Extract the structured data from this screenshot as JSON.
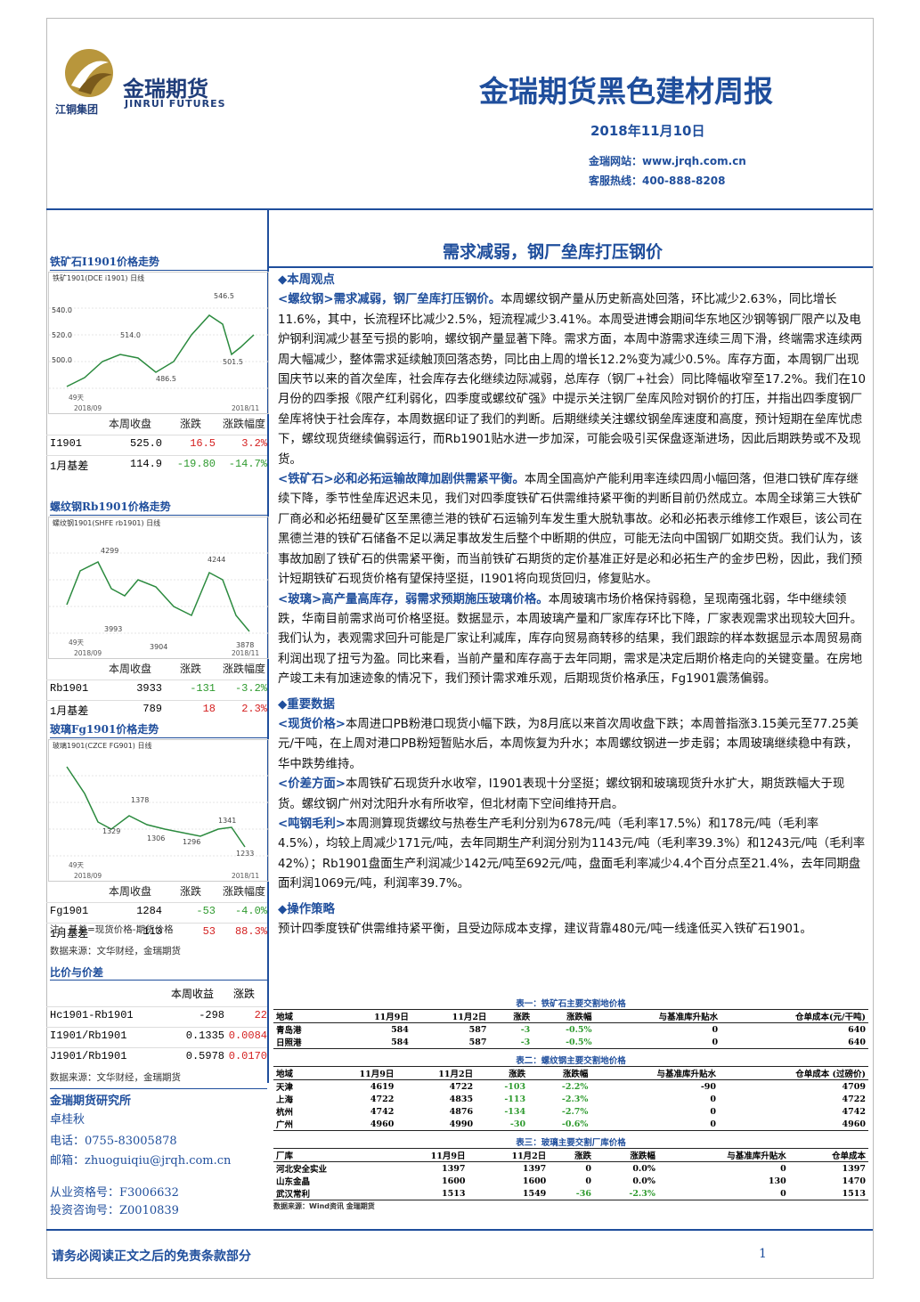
{
  "header": {
    "logo_name": "金瑞期货",
    "logo_en": "JINRUI FUTURES",
    "logo_group": "江铜集团",
    "title": "金瑞期货黑色建材周报",
    "date": "2018年11月10日",
    "website": "金瑞网站：www.jrqh.com.cn",
    "hotline": "客服热线：400-888-8208"
  },
  "sidebar": {
    "panels": [
      {
        "title": "铁矿石I1901价格走势",
        "chart_title": "铁矿1901(DCE i1901) 日线",
        "axis_labels": [
          "540.0",
          "520.0",
          "500.0"
        ],
        "annotations": [
          "546.5",
          "514.0",
          "486.5",
          "501.5"
        ],
        "bottom_labels": [
          "49天",
          "2018/09",
          "2018/11"
        ],
        "table": {
          "header": [
            "本周收盘",
            "涨跌",
            "涨跌幅度"
          ],
          "rows": [
            [
              "I1901",
              "525.0",
              "16.5",
              "3.2%"
            ],
            [
              "1月基差",
              "114.9",
              "-19.80",
              "-14.7%"
            ]
          ]
        }
      },
      {
        "title": "螺纹钢Rb1901价格走势",
        "chart_title": "螺纹钢1901(SHFE rb1901) 日线",
        "axis_labels": [],
        "annotations": [
          "4299",
          "4244",
          "3993",
          "3904",
          "3878"
        ],
        "bottom_labels": [
          "49天",
          "2018/09",
          "2018/11"
        ],
        "table": {
          "header": [
            "本周收盘",
            "涨跌",
            "涨跌幅度"
          ],
          "rows": [
            [
              "Rb1901",
              "3933",
              "-131",
              "-3.2%"
            ],
            [
              "1月基差",
              "789",
              "18",
              "2.3%"
            ]
          ]
        }
      },
      {
        "title": "玻璃Fg1901价格走势",
        "chart_title": "玻璃1901(CZCE FG901) 日线",
        "axis_labels": [],
        "annotations": [
          "1378",
          "1329",
          "1306",
          "1296",
          "1341",
          "1233"
        ],
        "bottom_labels": [
          "49天",
          "2018/09",
          "2018/11"
        ],
        "table": {
          "header": [
            "本周收盘",
            "涨跌",
            "涨跌幅度"
          ],
          "rows": [
            [
              "Fg1901",
              "1284",
              "-53",
              "-4.0%"
            ],
            [
              "1月基差",
              "113",
              "53",
              "88.3%"
            ]
          ]
        }
      }
    ],
    "note": "注：基差=现货价格-期货价格",
    "source": "数据来源：文华财经，金瑞期货",
    "ratio": {
      "title": "比价与价差",
      "header": [
        "本周收益",
        "涨跌"
      ],
      "rows": [
        [
          "Hc1901-Rb1901",
          "-298",
          "22"
        ],
        [
          "I1901/Rb1901",
          "0.1335",
          "0.0084"
        ],
        [
          "J1901/Rb1901",
          "0.5978",
          "0.0170"
        ]
      ],
      "source": "数据来源：文华财经，金瑞期货"
    },
    "contact": {
      "org": "金瑞期货研究所",
      "name": "卓桂秋",
      "phone": "电话：0755-83005878",
      "email": "邮箱：zhuoguiqiu@jrqh.com.cn",
      "license": "从业资格号：F3006632",
      "advisor": "投资咨询号：Z0010839"
    }
  },
  "main": {
    "headline": "需求减弱，钢厂垒库打压钢价",
    "sections": [
      {
        "title": "◆本周观点",
        "paragraphs": [
          {
            "lead": "<螺纹钢>需求减弱，钢厂垒库打压钢价。",
            "text": "本周螺纹钢产量从历史新高处回落，环比减少2.63%，同比增长11.6%，其中，长流程环比减少2.5%，短流程减少3.41%。本周受进博会期间华东地区沙钢等钢厂限产以及电炉钢利润减少甚至亏损的影响，螺纹钢产量显著下降。需求方面，本周中游需求连续三周下滑，终端需求连续两周大幅减少，整体需求延续触顶回落态势，同比由上周的增长12.2%变为减少0.5%。库存方面，本周钢厂出现国庆节以来的首次垒库，社会库存去化继续边际减弱，总库存（钢厂+社会）同比降幅收窄至17.2%。我们在10月份的四季报《限产红利弱化，四季度或螺纹矿强》中提示关注钢厂垒库风险对钢价的打压，并指出四季度钢厂垒库将快于社会库存，本周数据印证了我们的判断。后期继续关注螺纹钢垒库速度和高度，预计短期在垒库忧虑下，螺纹现货继续偏弱运行，而Rb1901贴水进一步加深，可能会吸引买保盘逐渐进场，因此后期跌势或不及现货。"
          },
          {
            "lead": "<铁矿石>必和必拓运输故障加剧供需紧平衡。",
            "text": "本周全国高炉产能利用率连续四周小幅回落，但港口铁矿库存继续下降，季节性垒库迟迟未见，我们对四季度铁矿石供需维持紧平衡的判断目前仍然成立。本周全球第三大铁矿厂商必和必拓纽曼矿区至黑德兰港的铁矿石运输列车发生重大脱轨事故。必和必拓表示维修工作艰巨，该公司在黑德兰港的铁矿石储备不足以满足事故发生后整个中断期的供应，可能无法向中国钢厂如期交货。我们认为，该事故加剧了铁矿石的供需紧平衡，而当前铁矿石期货的定价基准正好是必和必拓生产的金步巴粉，因此，我们预计短期铁矿石现货价格有望保持坚挺，I1901将向现货回归，修复贴水。"
          },
          {
            "lead": "<玻璃>高产量高库存，弱需求预期施压玻璃价格。",
            "text": "本周玻璃市场价格保持弱稳，呈现南强北弱，华中继续领跌，华南目前需求尚可价格坚挺。数据显示，本周玻璃产量和厂家库存环比下降，厂家表观需求出现较大回升。我们认为，表观需求回升可能是厂家让利减库，库存向贸易商转移的结果，我们跟踪的样本数据显示本周贸易商利润出现了扭亏为盈。同比来看，当前产量和库存高于去年同期，需求是决定后期价格走向的关键变量。在房地产竣工未有加速迹象的情况下，我们预计需求难乐观，后期现货价格承压，Fg1901震荡偏弱。"
          }
        ]
      },
      {
        "title": "◆重要数据",
        "paragraphs": [
          {
            "lead": "<现货价格>",
            "text": "本周进口PB粉港口现货小幅下跌，为8月底以来首次周收盘下跌；本周普指涨3.15美元至77.25美元/干吨，在上周对港口PB粉短暂贴水后，本周恢复为升水；本周螺纹钢进一步走弱；本周玻璃继续稳中有跌，华中跌势维持。"
          },
          {
            "lead": "<价差方面>",
            "text": "本周铁矿石现货升水收窄，I1901表现十分坚挺；螺纹钢和玻璃现货升水扩大，期货跌幅大于现货。螺纹钢广州对沈阳升水有所收窄，但北材南下空间维持开启。"
          },
          {
            "lead": "<吨钢毛利>",
            "text": "本周测算现货螺纹与热卷生产毛利分别为678元/吨（毛利率17.5%）和178元/吨（毛利率4.5%），均较上周减少171元/吨，去年同期生产利润分别为1143元/吨（毛利率39.3%）和1243元/吨（毛利率42%）；Rb1901盘面生产利润减少142元/吨至692元/吨，盘面毛利率减少4.4个百分点至21.4%，去年同期盘面利润1069元/吨，利润率39.7%。"
          }
        ]
      },
      {
        "title": "◆操作策略",
        "paragraphs": [
          {
            "lead": "",
            "text": "预计四季度铁矿供需维持紧平衡，且受边际成本支撑，建议背靠480元/吨一线逢低买入铁矿石1901。"
          }
        ]
      }
    ],
    "tables": [
      {
        "caption": "表一：铁矿石主要交割地价格",
        "header": [
          "地域",
          "11月9日",
          "11月2日",
          "涨跌",
          "涨跌幅",
          "与基准库升贴水",
          "仓单成本(元/干吨)"
        ],
        "rows": [
          [
            "青岛港",
            "584",
            "587",
            "-3",
            "-0.5%",
            "0",
            "640"
          ],
          [
            "日照港",
            "584",
            "587",
            "-3",
            "-0.5%",
            "0",
            "640"
          ]
        ]
      },
      {
        "caption": "表二：螺纹钢主要交割地价格",
        "header": [
          "地域",
          "11月9日",
          "11月2日",
          "涨跌",
          "涨跌幅",
          "与基准库升贴水",
          "仓单成本 (过磅价)"
        ],
        "rows": [
          [
            "天津",
            "4619",
            "4722",
            "-103",
            "-2.2%",
            "-90",
            "4709"
          ],
          [
            "上海",
            "4722",
            "4835",
            "-113",
            "-2.3%",
            "0",
            "4722"
          ],
          [
            "杭州",
            "4742",
            "4876",
            "-134",
            "-2.7%",
            "0",
            "4742"
          ],
          [
            "广州",
            "4960",
            "4990",
            "-30",
            "-0.6%",
            "0",
            "4960"
          ]
        ]
      },
      {
        "caption": "表三：玻璃主要交割厂库价格",
        "header": [
          "厂库",
          "11月9日",
          "11月2日",
          "涨跌",
          "涨跌幅",
          "与基准库升贴水",
          "仓单成本"
        ],
        "rows": [
          [
            "河北安全实业",
            "1397",
            "1397",
            "0",
            "0.0%",
            "0",
            "1397"
          ],
          [
            "山东金晶",
            "1600",
            "1600",
            "0",
            "0.0%",
            "130",
            "1470"
          ],
          [
            "武汉常利",
            "1513",
            "1549",
            "-36",
            "-2.3%",
            "0",
            "1513"
          ]
        ]
      }
    ],
    "tables_source": "数据来源：Wind资讯 金瑞期货"
  },
  "footer": {
    "disclaimer": "请务必阅读正文之后的免责条款部分",
    "page": "1"
  }
}
